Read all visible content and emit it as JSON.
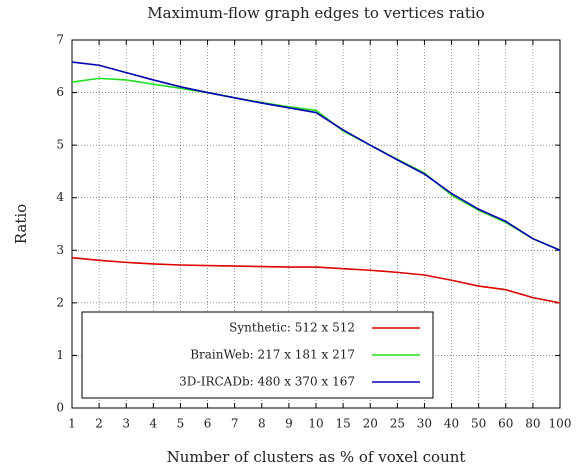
{
  "chart_data": {
    "type": "line",
    "title": "Maximum-flow graph edges to vertices ratio",
    "xlabel": "Number of clusters as % of voxel count",
    "ylabel": "Ratio",
    "categories": [
      "1",
      "2",
      "3",
      "4",
      "5",
      "6",
      "7",
      "8",
      "9",
      "10",
      "15",
      "20",
      "25",
      "30",
      "40",
      "50",
      "60",
      "80",
      "100"
    ],
    "series": [
      {
        "name": "Synthetic: 512 x 512",
        "color": "#e00000",
        "values": [
          2.86,
          2.81,
          2.77,
          2.74,
          2.72,
          2.71,
          2.7,
          2.69,
          2.68,
          2.68,
          2.65,
          2.62,
          2.58,
          2.53,
          2.43,
          2.32,
          2.25,
          2.1,
          2.0
        ]
      },
      {
        "name": "BrainWeb: 217 x 181 x 217",
        "color": "#20e020",
        "values": [
          6.2,
          6.27,
          6.24,
          6.16,
          6.08,
          6.0,
          5.9,
          5.81,
          5.73,
          5.66,
          5.27,
          5.0,
          4.73,
          4.47,
          4.05,
          3.76,
          3.53,
          3.22,
          3.0
        ]
      },
      {
        "name": "3D-IRCADb: 480 x 370 x 167",
        "color": "#0000b0",
        "values": [
          6.58,
          6.52,
          6.38,
          6.24,
          6.11,
          6.0,
          5.9,
          5.8,
          5.71,
          5.62,
          5.29,
          5.0,
          4.72,
          4.45,
          4.08,
          3.78,
          3.55,
          3.22,
          3.0
        ]
      }
    ],
    "ylim": [
      0,
      7
    ],
    "yticks": [
      0,
      1,
      2,
      3,
      4,
      5,
      6,
      7
    ],
    "grid": true,
    "legend": "lower left"
  }
}
